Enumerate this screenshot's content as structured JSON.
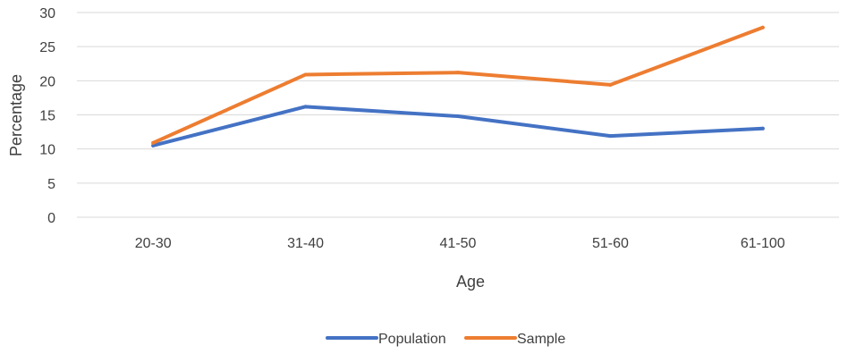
{
  "chart_data": {
    "type": "line",
    "categories": [
      "20-30",
      "31-40",
      "41-50",
      "51-60",
      "61-100"
    ],
    "series": [
      {
        "name": "Population",
        "color": "#4472c4",
        "values": [
          10.5,
          16.2,
          14.8,
          11.9,
          13.0
        ]
      },
      {
        "name": "Sample",
        "color": "#ed7d31",
        "values": [
          10.9,
          20.9,
          21.2,
          19.4,
          27.8
        ]
      }
    ],
    "xlabel": "Age",
    "ylabel": "Percentage",
    "ylim": [
      0,
      30
    ],
    "yticks": [
      0,
      5,
      10,
      15,
      20,
      25,
      30
    ],
    "grid": true,
    "legend_position": "bottom"
  }
}
